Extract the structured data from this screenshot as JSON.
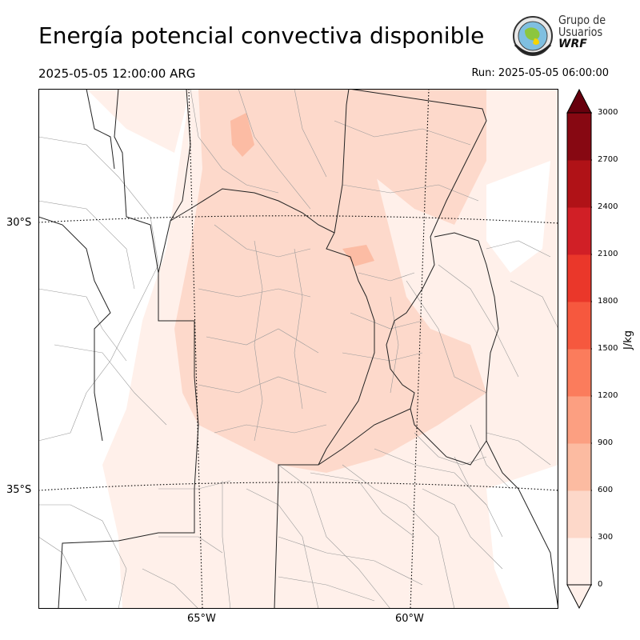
{
  "header": {
    "title": "Energía potencial convectiva disponible",
    "valid_time": "2025-05-05 12:00:00 ARG",
    "run_time": "Run: 2025-05-05 06:00:00"
  },
  "logo": {
    "line1": "Grupo de",
    "line2": "Usuarios",
    "line3": "WRF"
  },
  "map": {
    "lat_labels": [
      "30°S",
      "35°S"
    ],
    "lon_labels": [
      "65°W",
      "60°W"
    ],
    "fill_colors": [
      "#fff0ea",
      "#fdd9cb",
      "#fcbca4"
    ]
  },
  "colorbar": {
    "unit": "J/kg",
    "ticks": [
      "0",
      "300",
      "600",
      "900",
      "1200",
      "1500",
      "1800",
      "2100",
      "2400",
      "2700",
      "3000"
    ],
    "colors": [
      "#fff0ea",
      "#fdd8c9",
      "#fcbba1",
      "#fc9f81",
      "#fb7c5c",
      "#f6583e",
      "#ea372a",
      "#d11f26",
      "#b01217",
      "#870812"
    ],
    "extend_color": "#67000d"
  }
}
